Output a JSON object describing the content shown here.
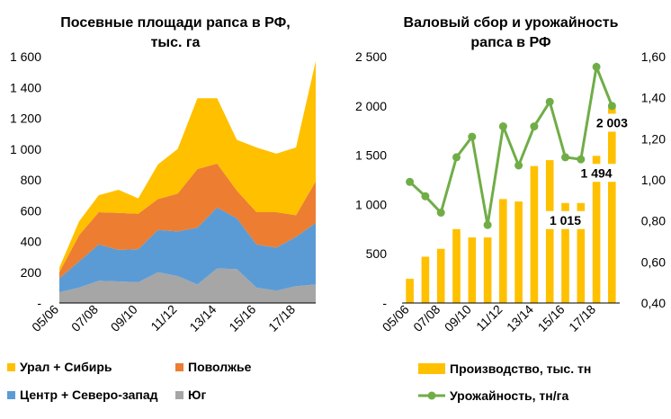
{
  "chart_data": [
    {
      "type": "area",
      "stacked": true,
      "title": "Посевные площади рапса в РФ, тыс. га",
      "title_lines": [
        "Посевные площади рапса в РФ,",
        "тыс. га"
      ],
      "y_ticks": [
        "1 600",
        "1 400",
        "1 200",
        "1 000",
        "800",
        "600",
        "400",
        "200",
        "-"
      ],
      "ylim": [
        0,
        1600
      ],
      "x": [
        "05/06",
        "06/07",
        "07/08",
        "08/09",
        "09/10",
        "10/11",
        "11/12",
        "12/13",
        "13/14",
        "14/15",
        "15/16",
        "16/17",
        "17/18",
        "18/19"
      ],
      "x_tick_labels": [
        "05/06",
        "07/08",
        "09/10",
        "11/12",
        "13/14",
        "15/16",
        "17/18"
      ],
      "series": [
        {
          "name": "Юг",
          "color": "#a6a6a6",
          "values": [
            70,
            100,
            145,
            140,
            135,
            200,
            175,
            120,
            225,
            220,
            100,
            80,
            110,
            120
          ]
        },
        {
          "name": "Центр + Северо-запад",
          "color": "#5b9bd5",
          "values": [
            90,
            170,
            235,
            205,
            215,
            275,
            290,
            370,
            395,
            330,
            280,
            280,
            320,
            400
          ]
        },
        {
          "name": "Поволжье",
          "color": "#ed7d31",
          "values": [
            40,
            170,
            210,
            240,
            230,
            200,
            245,
            380,
            285,
            180,
            210,
            230,
            140,
            270
          ]
        },
        {
          "name": "Урал + Сибирь",
          "color": "#ffc000",
          "values": [
            30,
            90,
            110,
            150,
            100,
            225,
            290,
            460,
            425,
            330,
            420,
            380,
            440,
            780
          ]
        }
      ],
      "legend_order": [
        "Урал + Сибирь",
        "Поволжье",
        "Центр + Северо-запад",
        "Юг"
      ],
      "legend": "bottom",
      "grid": false
    },
    {
      "type": "bar+line",
      "title": "Валовый сбор и урожайность рапса в РФ",
      "title_lines": [
        "Валовый сбор и урожайность",
        "рапса в РФ"
      ],
      "x": [
        "05/06",
        "06/07",
        "07/08",
        "08/09",
        "09/10",
        "10/11",
        "11/12",
        "12/13",
        "13/14",
        "14/15",
        "15/16",
        "16/17",
        "17/18",
        "18/19"
      ],
      "x_tick_labels": [
        "05/06",
        "07/08",
        "09/10",
        "11/12",
        "13/14",
        "15/16",
        "17/18"
      ],
      "y_left_ticks": [
        "2 500",
        "2 000",
        "1 500",
        "1 000",
        "500",
        "-"
      ],
      "y_left_lim": [
        0,
        2500
      ],
      "y_right_ticks": [
        "1,60",
        "1,40",
        "1,20",
        "1,00",
        "0,80",
        "0,60",
        "0,40"
      ],
      "y_right_lim": [
        0.4,
        1.6
      ],
      "series": [
        {
          "name": "Производство, тыс. тн",
          "type": "bar",
          "axis": "left",
          "color": "#ffc000",
          "values": [
            245,
            470,
            550,
            750,
            665,
            665,
            1055,
            1030,
            1390,
            1450,
            1015,
            1015,
            1494,
            2003
          ]
        },
        {
          "name": "Урожайность, тн/га",
          "type": "line",
          "axis": "right",
          "color": "#70ad47",
          "values": [
            0.99,
            0.92,
            0.84,
            1.11,
            1.21,
            0.78,
            1.26,
            1.07,
            1.26,
            1.38,
            1.11,
            1.1,
            1.55,
            1.36
          ]
        }
      ],
      "data_labels": [
        {
          "index": 10,
          "text": "1 015"
        },
        {
          "index": 12,
          "text": "1 494"
        },
        {
          "index": 13,
          "text": "2 003"
        }
      ],
      "legend": "bottom",
      "grid": false
    }
  ],
  "icons": {
    "legend_marker_square": "square",
    "legend_marker_line": "line-with-circle"
  }
}
